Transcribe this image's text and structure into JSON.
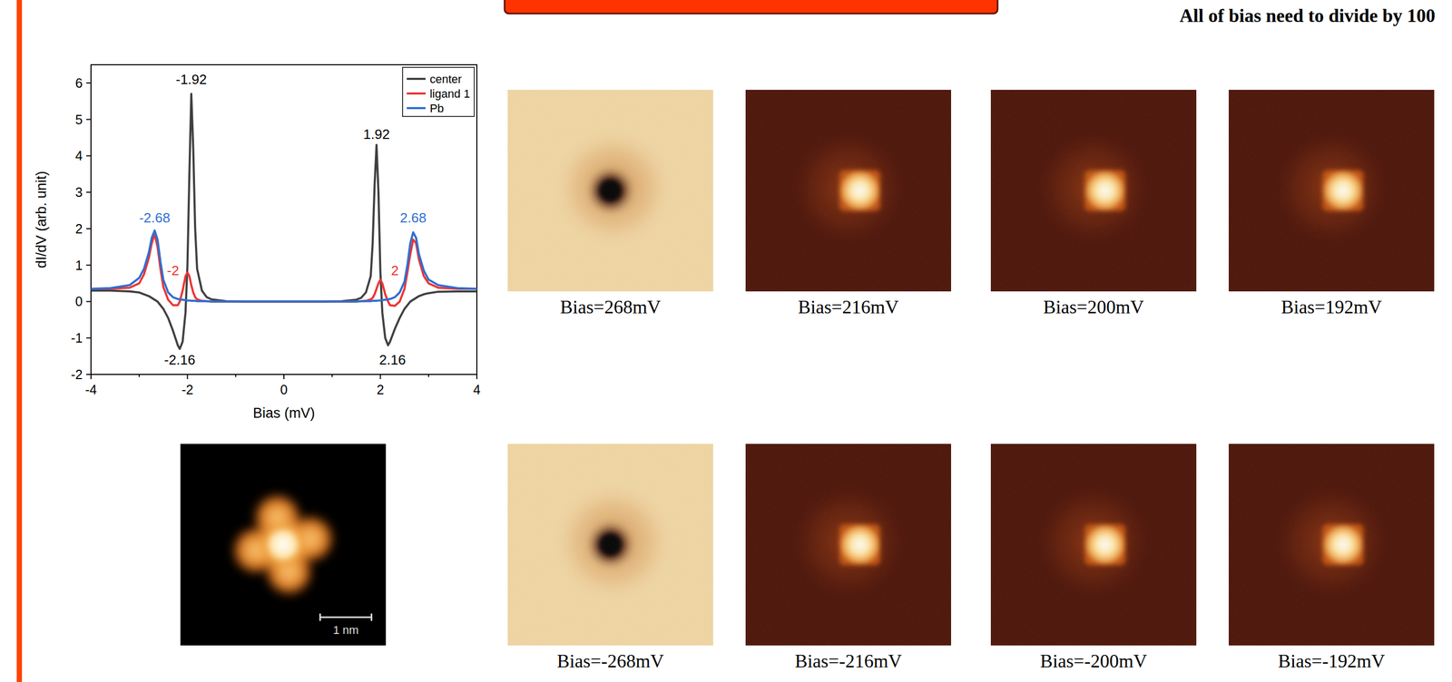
{
  "chart_data": {
    "type": "line",
    "x_label": "Bias (mV)",
    "y_label": "dI/dV (arb. unit)",
    "x": [
      -4,
      -3.6,
      -3.2,
      -3.0,
      -2.9,
      -2.8,
      -2.74,
      -2.68,
      -2.62,
      -2.56,
      -2.5,
      -2.4,
      -2.3,
      -2.2,
      -2.16,
      -2.1,
      -2.04,
      -2.0,
      -1.96,
      -1.92,
      -1.88,
      -1.84,
      -1.8,
      -1.7,
      -1.6,
      -1.5,
      -1.2,
      -0.8,
      0,
      0.8,
      1.2,
      1.5,
      1.6,
      1.7,
      1.8,
      1.84,
      1.88,
      1.92,
      1.96,
      2.0,
      2.04,
      2.1,
      2.16,
      2.2,
      2.3,
      2.4,
      2.5,
      2.56,
      2.62,
      2.68,
      2.74,
      2.8,
      2.9,
      3.0,
      3.2,
      3.6,
      4
    ],
    "series": [
      {
        "name": "center",
        "color": "#404040",
        "values": [
          0.3,
          0.3,
          0.28,
          0.25,
          0.2,
          0.15,
          0.1,
          0.05,
          0.0,
          -0.1,
          -0.2,
          -0.45,
          -0.8,
          -1.2,
          -1.3,
          -1.1,
          -0.3,
          1.0,
          3.5,
          5.7,
          4.2,
          2.0,
          0.9,
          0.3,
          0.12,
          0.06,
          0.01,
          0,
          0,
          0,
          0.01,
          0.05,
          0.1,
          0.25,
          0.7,
          1.6,
          3.2,
          4.3,
          3.0,
          0.8,
          -0.3,
          -1.0,
          -1.2,
          -1.1,
          -0.75,
          -0.45,
          -0.2,
          -0.1,
          0.0,
          0.05,
          0.1,
          0.15,
          0.2,
          0.23,
          0.27,
          0.28,
          0.28
        ]
      },
      {
        "name": "ligand 1",
        "color": "#ee3333",
        "values": [
          0.35,
          0.35,
          0.38,
          0.5,
          0.75,
          1.2,
          1.6,
          1.85,
          1.5,
          0.9,
          0.4,
          0.05,
          -0.1,
          -0.1,
          0.0,
          0.3,
          0.7,
          0.8,
          0.7,
          0.45,
          0.25,
          0.12,
          0.06,
          0.02,
          0.01,
          0,
          0,
          0,
          0,
          0,
          0,
          0,
          0.01,
          0.02,
          0.06,
          0.1,
          0.2,
          0.35,
          0.5,
          0.6,
          0.5,
          0.2,
          0.0,
          -0.1,
          -0.12,
          0.0,
          0.35,
          0.8,
          1.3,
          1.7,
          1.6,
          1.15,
          0.7,
          0.5,
          0.38,
          0.35,
          0.35
        ]
      },
      {
        "name": "Pb",
        "color": "#2f6fd0",
        "values": [
          0.35,
          0.37,
          0.45,
          0.65,
          0.9,
          1.35,
          1.75,
          1.95,
          1.7,
          1.1,
          0.6,
          0.25,
          0.12,
          0.07,
          0.06,
          0.05,
          0.04,
          0.03,
          0.03,
          0.02,
          0.02,
          0.02,
          0.01,
          0.01,
          0.01,
          0,
          0,
          0,
          0,
          0,
          0,
          0,
          0.01,
          0.01,
          0.01,
          0.02,
          0.02,
          0.02,
          0.03,
          0.03,
          0.04,
          0.05,
          0.06,
          0.07,
          0.12,
          0.25,
          0.55,
          1.0,
          1.6,
          1.9,
          1.75,
          1.3,
          0.85,
          0.6,
          0.45,
          0.37,
          0.35
        ]
      }
    ],
    "xlim": [
      -4,
      4
    ],
    "ylim": [
      -2,
      6.5
    ],
    "xticks": [
      -4,
      -2,
      0,
      2,
      4
    ],
    "yticks": [
      -2,
      -1,
      0,
      1,
      2,
      3,
      4,
      5,
      6
    ],
    "legend": "top-right",
    "annotations": [
      {
        "text": "-1.92",
        "x": -1.92,
        "y": 6.1,
        "color": "#000000"
      },
      {
        "text": "1.92",
        "x": 1.92,
        "y": 4.6,
        "color": "#000000"
      },
      {
        "text": "-2.16",
        "x": -2.16,
        "y": -1.6,
        "color": "#000000"
      },
      {
        "text": "2.16",
        "x": 2.25,
        "y": -1.6,
        "color": "#000000"
      },
      {
        "text": "-2.68",
        "x": -2.68,
        "y": 2.3,
        "color": "#2f6fd0"
      },
      {
        "text": "2.68",
        "x": 2.68,
        "y": 2.3,
        "color": "#2f6fd0"
      },
      {
        "text": "-2",
        "x": -2.3,
        "y": 0.85,
        "color": "#ee3333"
      },
      {
        "text": "2",
        "x": 2.3,
        "y": 0.85,
        "color": "#ee3333"
      }
    ]
  },
  "header": {
    "note": "All of bias need to divide by 100"
  },
  "maps": [
    {
      "caption": "Bias=268mV",
      "style": "dark-spot"
    },
    {
      "caption": "Bias=216mV",
      "style": "bright-spot"
    },
    {
      "caption": "Bias=200mV",
      "style": "bright-spot"
    },
    {
      "caption": "Bias=192mV",
      "style": "bright-spot"
    },
    {
      "caption": "Bias=-268mV",
      "style": "dark-spot"
    },
    {
      "caption": "Bias=-216mV",
      "style": "bright-spot"
    },
    {
      "caption": "Bias=-200mV",
      "style": "bright-spot"
    },
    {
      "caption": "Bias=-192mV",
      "style": "bright-spot"
    }
  ],
  "topography": {
    "scale_bar": "1 nm"
  }
}
